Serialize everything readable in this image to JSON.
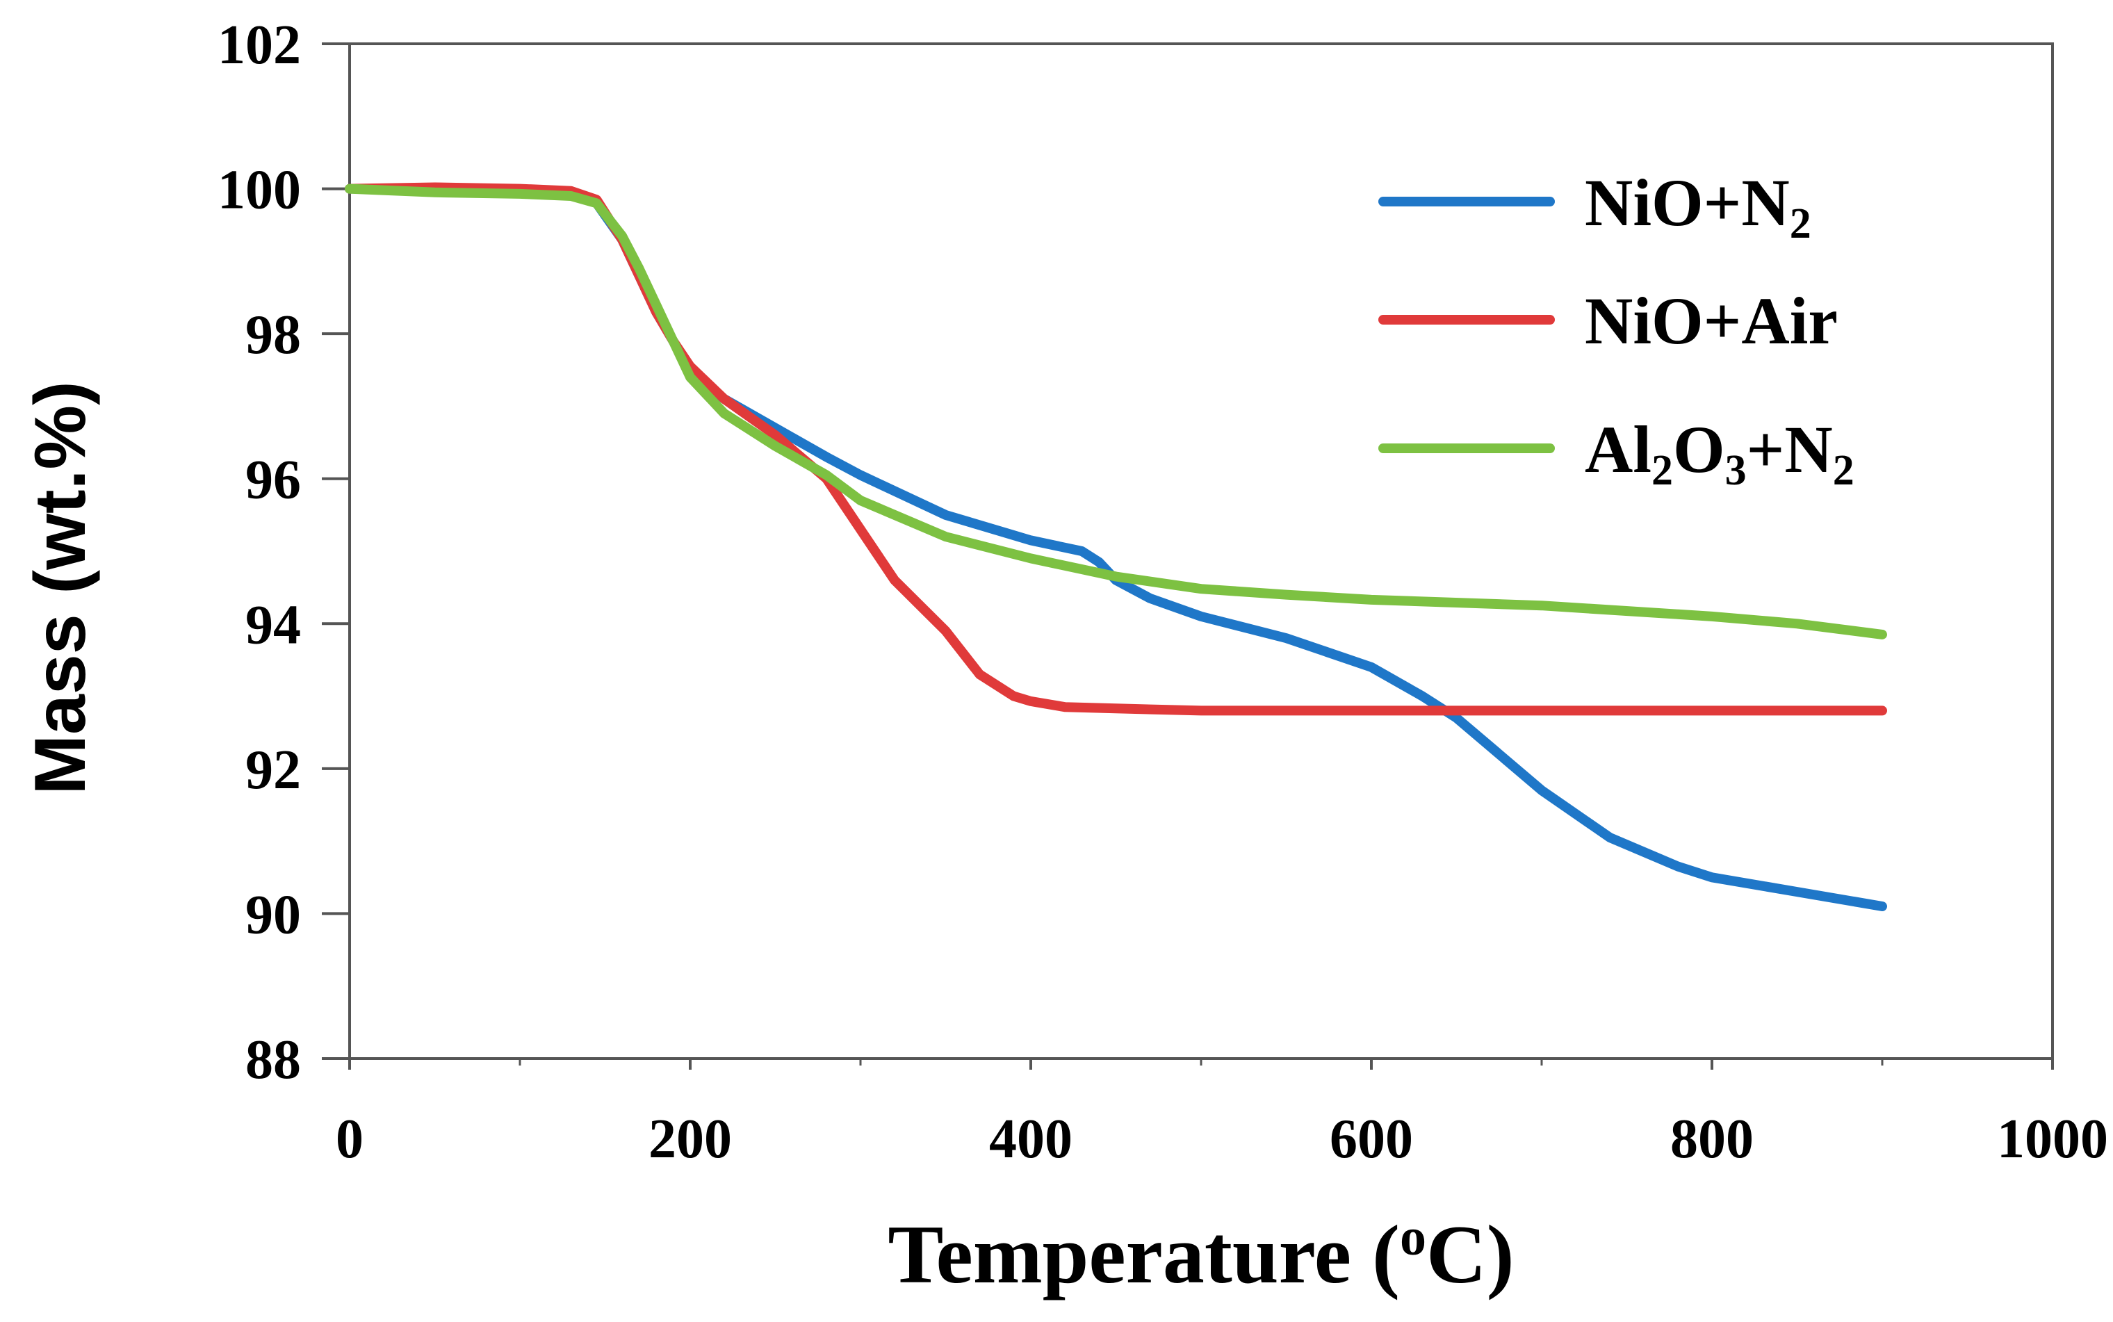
{
  "chart_data": {
    "type": "line",
    "title": "",
    "xlabel": "Temperature (",
    "xlabel_sup": "o",
    "xlabel_tail": "C)",
    "ylabel": "Mass (wt.%)",
    "xlim": [
      0,
      1000
    ],
    "ylim": [
      88,
      102
    ],
    "x_ticks": [
      0,
      200,
      400,
      600,
      800,
      1000
    ],
    "x_tick_labels": [
      "0",
      "200",
      "400",
      "600",
      "800",
      "1000"
    ],
    "y_ticks": [
      88,
      90,
      92,
      94,
      96,
      98,
      100,
      102
    ],
    "y_tick_labels": [
      "88",
      "90",
      "92",
      "94",
      "96",
      "98",
      "100",
      "102"
    ],
    "grid": false,
    "legend_position": "top-right",
    "series": [
      {
        "name": "NiO+N2",
        "legend_parts": [
          "NiO+N",
          "2",
          ""
        ],
        "color": "#1f77c8",
        "x": [
          0,
          50,
          100,
          130,
          145,
          160,
          170,
          180,
          190,
          200,
          220,
          250,
          280,
          300,
          350,
          400,
          430,
          440,
          450,
          470,
          500,
          550,
          600,
          630,
          650,
          680,
          700,
          740,
          780,
          800,
          850,
          900
        ],
        "values": [
          100.0,
          100.0,
          99.98,
          99.95,
          99.8,
          99.3,
          98.8,
          98.3,
          97.9,
          97.5,
          97.1,
          96.7,
          96.3,
          96.05,
          95.5,
          95.15,
          95.0,
          94.85,
          94.6,
          94.35,
          94.1,
          93.8,
          93.4,
          93.0,
          92.7,
          92.1,
          91.7,
          91.05,
          90.65,
          90.5,
          90.3,
          90.1
        ]
      },
      {
        "name": "NiO+Air",
        "legend_parts": [
          "NiO+Air",
          "",
          ""
        ],
        "color": "#e03a3a",
        "x": [
          0,
          50,
          100,
          130,
          145,
          160,
          170,
          180,
          190,
          200,
          220,
          250,
          280,
          300,
          320,
          350,
          370,
          390,
          400,
          420,
          450,
          500,
          600,
          700,
          800,
          900
        ],
        "values": [
          100.0,
          100.02,
          100.0,
          99.97,
          99.85,
          99.3,
          98.8,
          98.3,
          97.9,
          97.55,
          97.1,
          96.6,
          96.0,
          95.3,
          94.6,
          93.9,
          93.3,
          93.0,
          92.93,
          92.85,
          92.83,
          92.8,
          92.8,
          92.8,
          92.8,
          92.8
        ]
      },
      {
        "name": "Al2O3+N2",
        "legend_parts": [
          "Al",
          "2",
          "O",
          "3",
          "+N",
          "2"
        ],
        "color": "#7dc142",
        "x": [
          0,
          50,
          100,
          130,
          145,
          160,
          170,
          180,
          190,
          200,
          220,
          250,
          280,
          300,
          350,
          400,
          450,
          500,
          550,
          600,
          700,
          800,
          850,
          900
        ],
        "values": [
          100.0,
          99.95,
          99.93,
          99.9,
          99.8,
          99.35,
          98.9,
          98.4,
          97.9,
          97.4,
          96.9,
          96.45,
          96.05,
          95.7,
          95.2,
          94.9,
          94.65,
          94.48,
          94.4,
          94.33,
          94.25,
          94.1,
          94.0,
          93.85
        ]
      }
    ]
  }
}
